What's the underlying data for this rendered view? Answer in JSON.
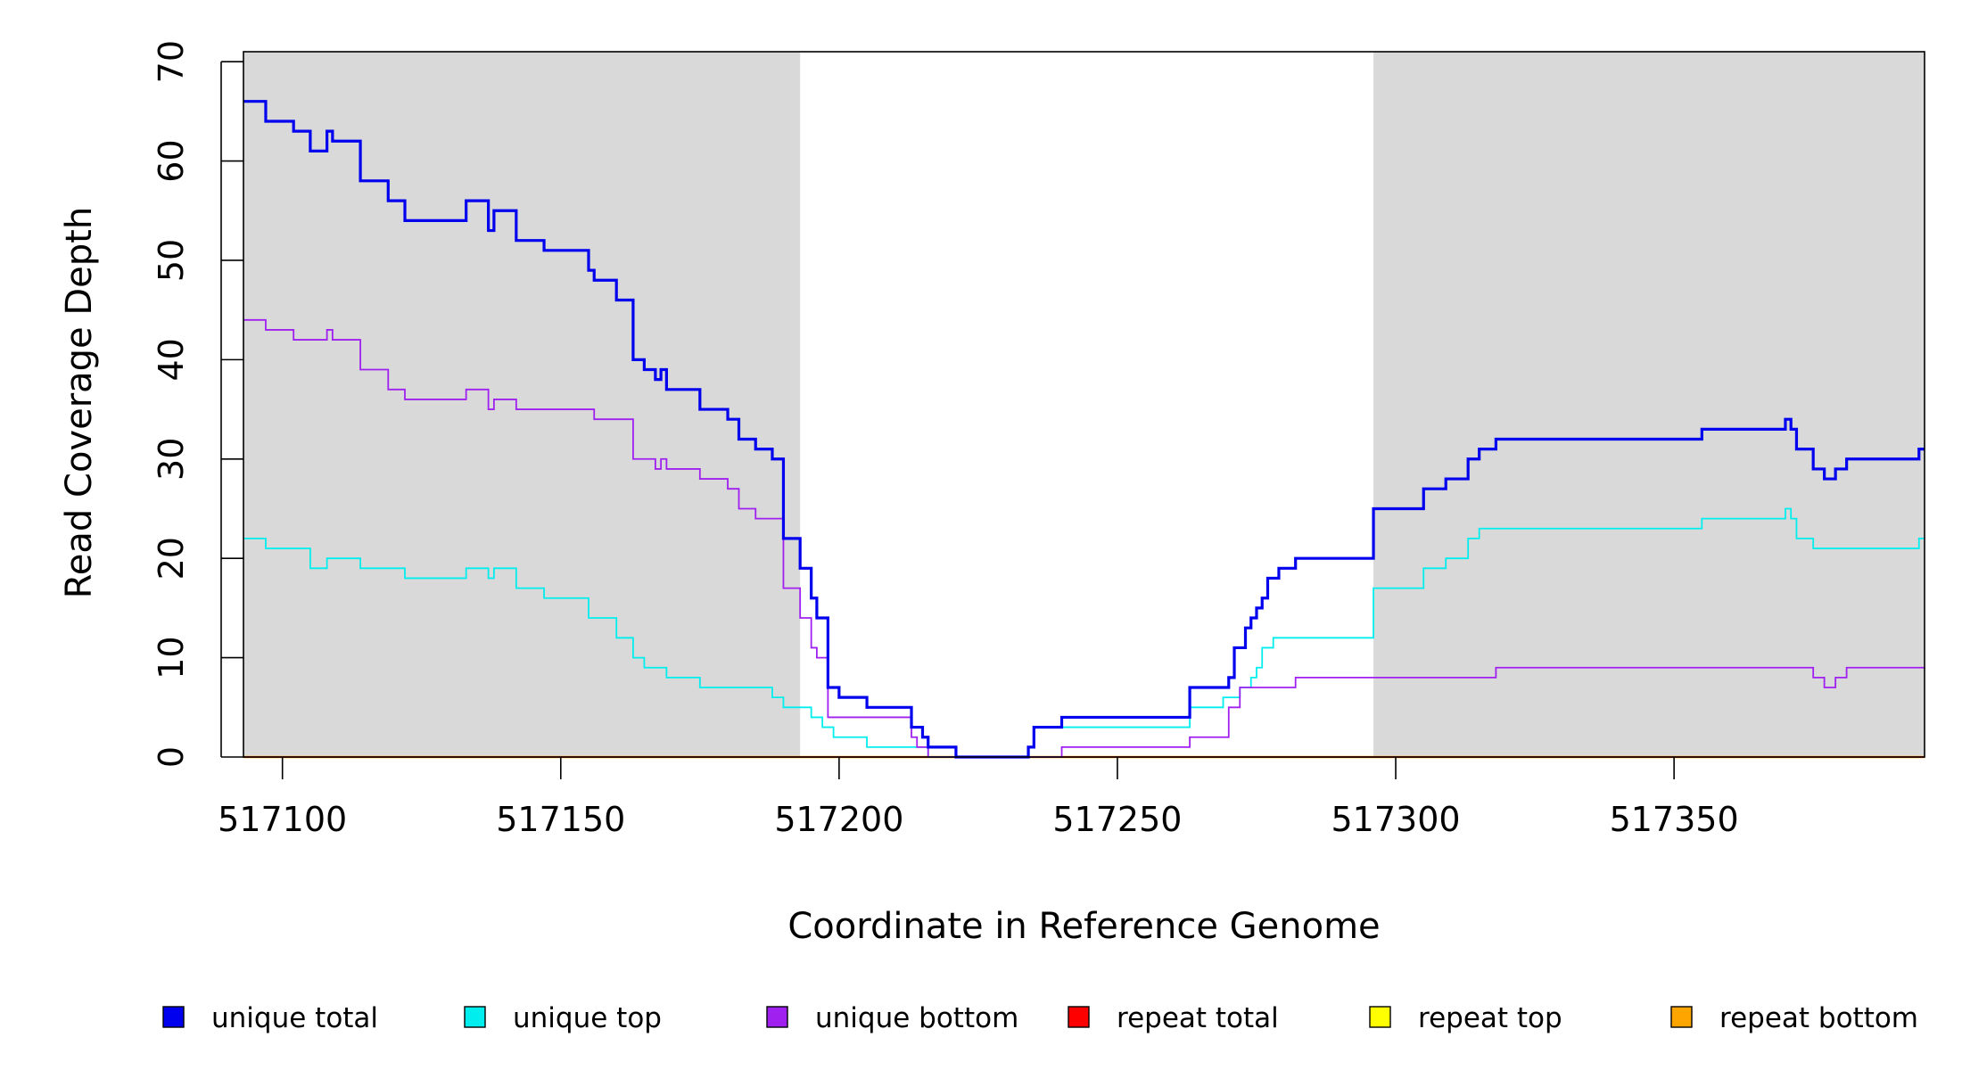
{
  "chart_data": {
    "type": "line",
    "step": true,
    "title": "",
    "xlabel": "Coordinate in Reference Genome",
    "ylabel": "Read Coverage Depth",
    "xlim": [
      517093,
      517395
    ],
    "ylim": [
      0,
      71
    ],
    "x_ticks": [
      517100,
      517150,
      517200,
      517250,
      517300,
      517350
    ],
    "x_tick_labels": [
      "517100",
      "517150",
      "517200",
      "517250",
      "517300",
      "517350"
    ],
    "y_ticks": [
      0,
      10,
      20,
      30,
      40,
      50,
      60,
      70
    ],
    "y_tick_labels": [
      "0",
      "10",
      "20",
      "30",
      "40",
      "50",
      "60",
      "70"
    ],
    "grid": false,
    "legend_position": "bottom",
    "shaded_regions": [
      {
        "x0": 517093,
        "x1": 517193,
        "color": "#d9d9d9"
      },
      {
        "x0": 517296,
        "x1": 517395,
        "color": "#d9d9d9"
      }
    ],
    "series": [
      {
        "name": "unique total",
        "color": "#0000ee",
        "width": 3.2,
        "points": [
          [
            517093,
            66
          ],
          [
            517097,
            64
          ],
          [
            517102,
            63
          ],
          [
            517105,
            61
          ],
          [
            517108,
            63
          ],
          [
            517109,
            62
          ],
          [
            517114,
            58
          ],
          [
            517119,
            56
          ],
          [
            517122,
            54
          ],
          [
            517133,
            56
          ],
          [
            517137,
            53
          ],
          [
            517138,
            55
          ],
          [
            517142,
            52
          ],
          [
            517147,
            51
          ],
          [
            517155,
            49
          ],
          [
            517156,
            48
          ],
          [
            517160,
            46
          ],
          [
            517163,
            40
          ],
          [
            517165,
            39
          ],
          [
            517167,
            38
          ],
          [
            517168,
            39
          ],
          [
            517169,
            37
          ],
          [
            517175,
            35
          ],
          [
            517180,
            34
          ],
          [
            517182,
            32
          ],
          [
            517185,
            31
          ],
          [
            517188,
            30
          ],
          [
            517190,
            22
          ],
          [
            517193,
            19
          ],
          [
            517195,
            16
          ],
          [
            517196,
            14
          ],
          [
            517198,
            7
          ],
          [
            517200,
            6
          ],
          [
            517205,
            5
          ],
          [
            517213,
            3
          ],
          [
            517215,
            2
          ],
          [
            517216,
            1
          ],
          [
            517221,
            0
          ],
          [
            517234,
            1
          ],
          [
            517235,
            3
          ],
          [
            517240,
            4
          ],
          [
            517263,
            7
          ],
          [
            517270,
            8
          ],
          [
            517271,
            11
          ],
          [
            517273,
            13
          ],
          [
            517274,
            14
          ],
          [
            517275,
            15
          ],
          [
            517276,
            16
          ],
          [
            517277,
            18
          ],
          [
            517279,
            19
          ],
          [
            517282,
            20
          ],
          [
            517296,
            25
          ],
          [
            517305,
            27
          ],
          [
            517309,
            28
          ],
          [
            517313,
            30
          ],
          [
            517315,
            31
          ],
          [
            517318,
            32
          ],
          [
            517355,
            33
          ],
          [
            517370,
            34
          ],
          [
            517371,
            33
          ],
          [
            517372,
            31
          ],
          [
            517375,
            29
          ],
          [
            517377,
            28
          ],
          [
            517379,
            29
          ],
          [
            517381,
            30
          ],
          [
            517394,
            31
          ],
          [
            517395,
            31
          ]
        ]
      },
      {
        "name": "unique top",
        "color": "#00eeee",
        "width": 1.8,
        "points": [
          [
            517093,
            22
          ],
          [
            517097,
            21
          ],
          [
            517105,
            19
          ],
          [
            517108,
            20
          ],
          [
            517114,
            19
          ],
          [
            517122,
            18
          ],
          [
            517133,
            19
          ],
          [
            517137,
            18
          ],
          [
            517138,
            19
          ],
          [
            517142,
            17
          ],
          [
            517147,
            16
          ],
          [
            517155,
            14
          ],
          [
            517160,
            12
          ],
          [
            517163,
            10
          ],
          [
            517165,
            9
          ],
          [
            517169,
            8
          ],
          [
            517175,
            7
          ],
          [
            517188,
            6
          ],
          [
            517190,
            5
          ],
          [
            517195,
            4
          ],
          [
            517197,
            3
          ],
          [
            517199,
            2
          ],
          [
            517205,
            1
          ],
          [
            517216,
            0
          ],
          [
            517234,
            1
          ],
          [
            517235,
            3
          ],
          [
            517263,
            5
          ],
          [
            517269,
            6
          ],
          [
            517272,
            7
          ],
          [
            517274,
            8
          ],
          [
            517275,
            9
          ],
          [
            517276,
            11
          ],
          [
            517278,
            12
          ],
          [
            517296,
            17
          ],
          [
            517305,
            19
          ],
          [
            517309,
            20
          ],
          [
            517313,
            22
          ],
          [
            517315,
            23
          ],
          [
            517355,
            24
          ],
          [
            517370,
            25
          ],
          [
            517371,
            24
          ],
          [
            517372,
            22
          ],
          [
            517375,
            21
          ],
          [
            517394,
            22
          ],
          [
            517395,
            22
          ]
        ]
      },
      {
        "name": "unique bottom",
        "color": "#a020f0",
        "width": 1.8,
        "points": [
          [
            517093,
            44
          ],
          [
            517097,
            43
          ],
          [
            517102,
            42
          ],
          [
            517108,
            43
          ],
          [
            517109,
            42
          ],
          [
            517114,
            39
          ],
          [
            517119,
            37
          ],
          [
            517122,
            36
          ],
          [
            517133,
            37
          ],
          [
            517137,
            35
          ],
          [
            517138,
            36
          ],
          [
            517142,
            35
          ],
          [
            517156,
            34
          ],
          [
            517163,
            30
          ],
          [
            517167,
            29
          ],
          [
            517168,
            30
          ],
          [
            517169,
            29
          ],
          [
            517175,
            28
          ],
          [
            517180,
            27
          ],
          [
            517182,
            25
          ],
          [
            517185,
            24
          ],
          [
            517190,
            17
          ],
          [
            517193,
            14
          ],
          [
            517195,
            11
          ],
          [
            517196,
            10
          ],
          [
            517198,
            4
          ],
          [
            517213,
            2
          ],
          [
            517214,
            1
          ],
          [
            517216,
            0
          ],
          [
            517240,
            1
          ],
          [
            517263,
            2
          ],
          [
            517270,
            5
          ],
          [
            517272,
            7
          ],
          [
            517282,
            8
          ],
          [
            517318,
            9
          ],
          [
            517370,
            9
          ],
          [
            517375,
            8
          ],
          [
            517377,
            7
          ],
          [
            517379,
            8
          ],
          [
            517381,
            9
          ],
          [
            517395,
            9
          ]
        ]
      },
      {
        "name": "repeat total",
        "color": "#ff0000",
        "width": 1.8,
        "points": [
          [
            517093,
            0
          ],
          [
            517395,
            0
          ]
        ]
      },
      {
        "name": "repeat top",
        "color": "#ffff00",
        "width": 1.8,
        "points": [
          [
            517093,
            0
          ],
          [
            517395,
            0
          ]
        ]
      },
      {
        "name": "repeat bottom",
        "color": "#ffa500",
        "width": 2.4,
        "points": [
          [
            517093,
            0
          ],
          [
            517395,
            0
          ]
        ]
      }
    ]
  }
}
